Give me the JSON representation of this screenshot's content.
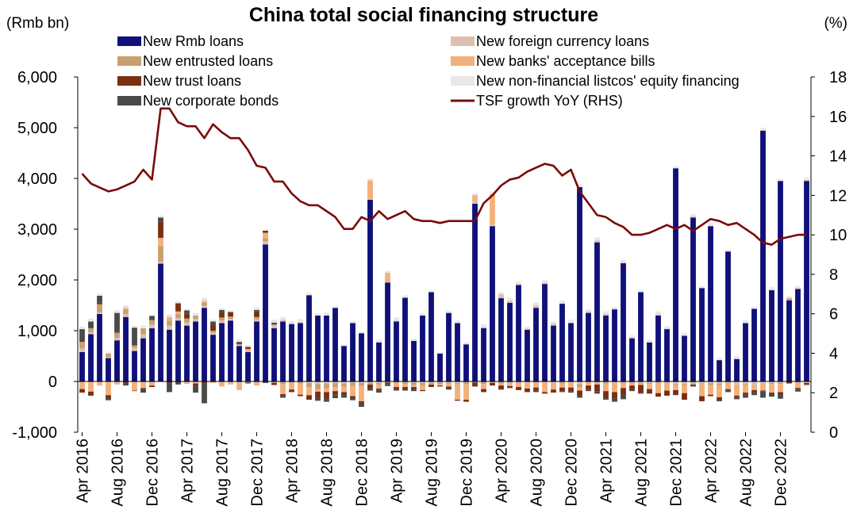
{
  "chart_data": {
    "type": "bar",
    "stacked": true,
    "title": "China total social financing structure",
    "y_unit_left": "(Rmb bn)",
    "y_unit_right": "(%)",
    "ylim_left": [
      -1000,
      6000
    ],
    "ylim_right": [
      0,
      18
    ],
    "yticks_left": [
      {
        "value": 6000,
        "label": "6,000",
        "color": "#000000"
      },
      {
        "value": 5000,
        "label": "5,000",
        "color": "#000000"
      },
      {
        "value": 4000,
        "label": "4,000",
        "color": "#000000"
      },
      {
        "value": 3000,
        "label": "3,000",
        "color": "#000000"
      },
      {
        "value": 2000,
        "label": "2,000",
        "color": "#000000"
      },
      {
        "value": 1000,
        "label": "1,000",
        "color": "#000000"
      },
      {
        "value": 0,
        "label": "0",
        "color": "#cc0000"
      },
      {
        "value": -1000,
        "label": "-1,000",
        "color": "#cc0000"
      }
    ],
    "yticks_right": [
      {
        "value": 18,
        "label": "18"
      },
      {
        "value": 16,
        "label": "16"
      },
      {
        "value": 14,
        "label": "14"
      },
      {
        "value": 12,
        "label": "12"
      },
      {
        "value": 10,
        "label": "10"
      },
      {
        "value": 8,
        "label": "8"
      },
      {
        "value": 6,
        "label": "6"
      },
      {
        "value": 4,
        "label": "4"
      },
      {
        "value": 2,
        "label": "2"
      },
      {
        "value": 0,
        "label": "0"
      }
    ],
    "categories": [
      "Apr 2016",
      "May 2016",
      "Jun 2016",
      "Jul 2016",
      "Aug 2016",
      "Sep 2016",
      "Oct 2016",
      "Nov 2016",
      "Dec 2016",
      "Jan 2017",
      "Feb 2017",
      "Mar 2017",
      "Apr 2017",
      "May 2017",
      "Jun 2017",
      "Jul 2017",
      "Aug 2017",
      "Sep 2017",
      "Oct 2017",
      "Nov 2017",
      "Dec 2017",
      "Jan 2018",
      "Feb 2018",
      "Mar 2018",
      "Apr 2018",
      "May 2018",
      "Jun 2018",
      "Jul 2018",
      "Aug 2018",
      "Sep 2018",
      "Oct 2018",
      "Nov 2018",
      "Dec 2018",
      "Jan 2019",
      "Feb 2019",
      "Mar 2019",
      "Apr 2019",
      "May 2019",
      "Jun 2019",
      "Jul 2019",
      "Aug 2019",
      "Sep 2019",
      "Oct 2019",
      "Nov 2019",
      "Dec 2019",
      "Jan 2020",
      "Feb 2020",
      "Mar 2020",
      "Apr 2020",
      "May 2020",
      "Jun 2020",
      "Jul 2020",
      "Aug 2020",
      "Sep 2020",
      "Oct 2020",
      "Nov 2020",
      "Dec 2020",
      "Jan 2021",
      "Feb 2021",
      "Mar 2021",
      "Apr 2021",
      "May 2021",
      "Jun 2021",
      "Jul 2021",
      "Aug 2021",
      "Sep 2021",
      "Oct 2021",
      "Nov 2021",
      "Dec 2021",
      "Jan 2022",
      "Feb 2022",
      "Mar 2022",
      "Apr 2022",
      "May 2022",
      "Jun 2022",
      "Jul 2022",
      "Aug 2022",
      "Sep 2022",
      "Oct 2022",
      "Nov 2022",
      "Dec 2022",
      "Jan 2023",
      "Feb 2023",
      "Mar 2023"
    ],
    "x_tick_labels": [
      "Apr 2016",
      "Aug 2016",
      "Dec 2016",
      "Apr 2017",
      "Aug 2017",
      "Dec 2017",
      "Apr 2018",
      "Aug 2018",
      "Dec 2018",
      "Apr 2019",
      "Aug 2019",
      "Dec 2019",
      "Apr 2020",
      "Aug 2020",
      "Dec 2020",
      "Apr 2021",
      "Aug 2021",
      "Dec 2021",
      "Apr 2022",
      "Aug 2022",
      "Dec 2022"
    ],
    "series": [
      {
        "name": "New Rmb loans",
        "color": "#10107a",
        "kind": "bar",
        "values": [
          580,
          930,
          1330,
          460,
          810,
          1270,
          600,
          850,
          1050,
          2320,
          1020,
          1200,
          1100,
          1180,
          1450,
          920,
          1150,
          1200,
          700,
          580,
          1180,
          2700,
          1050,
          1180,
          1130,
          1150,
          1700,
          1300,
          1300,
          1450,
          700,
          1150,
          950,
          3580,
          770,
          1950,
          1180,
          1650,
          800,
          1300,
          1760,
          550,
          1350,
          1150,
          730,
          3500,
          1050,
          3060,
          1640,
          1550,
          1900,
          1020,
          1450,
          1920,
          1100,
          1530,
          1150,
          3830,
          1350,
          2740,
          1300,
          1420,
          2330,
          850,
          1760,
          770,
          1300,
          1030,
          4200,
          900,
          3230,
          1840,
          3060,
          420,
          2560,
          440,
          1150,
          1430,
          4940,
          1800,
          3950,
          1600,
          1820,
          3950
        ]
      },
      {
        "name": "New foreign currency loans",
        "color": "#dcc0ac",
        "kind": "bar",
        "values": [
          70,
          40,
          30,
          20,
          50,
          60,
          60,
          80,
          70,
          40,
          80,
          50,
          60,
          50,
          40,
          40,
          50,
          30,
          30,
          20,
          40,
          60,
          50,
          40,
          20,
          20,
          -30,
          -50,
          -40,
          -30,
          -40,
          -20,
          -30,
          -20,
          -30,
          10,
          20,
          -10,
          -20,
          -30,
          -20,
          -10,
          -20,
          -30,
          10,
          50,
          20,
          30,
          80,
          40,
          20,
          20,
          50,
          30,
          40,
          10,
          10,
          -50,
          30,
          40,
          30,
          10,
          10,
          10,
          -20,
          -30,
          20,
          10,
          -50,
          -50,
          20,
          -40,
          -30,
          -40,
          -10,
          -60,
          -50,
          -80,
          -30,
          -30,
          -20,
          10,
          20,
          20
        ]
      },
      {
        "name": "New entrusted loans",
        "color": "#c8a070",
        "kind": "bar",
        "values": [
          130,
          80,
          160,
          70,
          100,
          90,
          50,
          120,
          90,
          310,
          100,
          80,
          80,
          70,
          60,
          40,
          60,
          50,
          -20,
          -20,
          50,
          60,
          -30,
          -50,
          -30,
          -40,
          -80,
          -100,
          -100,
          -80,
          -60,
          -70,
          -60,
          -40,
          -30,
          -20,
          -30,
          -40,
          -50,
          -60,
          -30,
          -40,
          -20,
          -30,
          -60,
          -20,
          -50,
          -30,
          -40,
          -30,
          -30,
          -20,
          -30,
          -10,
          -10,
          -40,
          -20,
          -60,
          -20,
          -30,
          -40,
          -20,
          -30,
          -30,
          -20,
          -20,
          -30,
          -30,
          -20,
          -20,
          -30,
          -20,
          -40,
          -30,
          -20,
          10,
          -20,
          -10,
          10,
          -20,
          -30,
          20,
          -30,
          -10
        ]
      },
      {
        "name": "New banks' acceptance bills",
        "color": "#f4b07a",
        "kind": "bar",
        "values": [
          -150,
          -200,
          -80,
          -270,
          -60,
          30,
          -180,
          -130,
          -80,
          160,
          70,
          50,
          -50,
          -40,
          40,
          -30,
          -100,
          -60,
          -150,
          40,
          -80,
          110,
          20,
          -200,
          -130,
          -220,
          -160,
          -50,
          -70,
          -80,
          -110,
          -200,
          -300,
          380,
          -80,
          180,
          -80,
          -60,
          -40,
          -80,
          -10,
          -30,
          -60,
          -300,
          -300,
          120,
          -100,
          600,
          -40,
          -60,
          -80,
          -120,
          -90,
          -200,
          -150,
          -80,
          -100,
          -70,
          -60,
          -30,
          -150,
          -190,
          -100,
          -50,
          -30,
          -100,
          -200,
          -150,
          -100,
          -160,
          -30,
          -230,
          -190,
          -240,
          -120,
          -220,
          -150,
          -80,
          -150,
          -170,
          -160,
          20,
          -100,
          -20
        ]
      },
      {
        "name": "New trust loans",
        "color": "#7a2f10",
        "kind": "bar",
        "values": [
          -70,
          -80,
          30,
          -50,
          10,
          -30,
          -10,
          -10,
          -30,
          320,
          -40,
          160,
          100,
          -40,
          -40,
          110,
          100,
          80,
          30,
          40,
          110,
          40,
          -40,
          -30,
          -50,
          -30,
          -90,
          -120,
          -110,
          -70,
          -40,
          -40,
          -30,
          -80,
          -20,
          -30,
          -40,
          -30,
          -30,
          -20,
          -50,
          -20,
          -40,
          -20,
          -40,
          -80,
          -60,
          -50,
          -80,
          -40,
          -60,
          -70,
          -50,
          -30,
          -60,
          -80,
          -70,
          -100,
          -80,
          -130,
          -140,
          -110,
          -120,
          -90,
          -140,
          -90,
          -70,
          -100,
          -80,
          -130,
          -10,
          -100,
          -30,
          -50,
          -20,
          -30,
          -40,
          -40,
          -20,
          -30,
          -40,
          -40,
          -30,
          -30
        ]
      },
      {
        "name": "New corporate bonds",
        "color": "#4a4a4a",
        "kind": "bar",
        "values": [
          250,
          130,
          140,
          -50,
          380,
          -50,
          350,
          -80,
          80,
          80,
          -170,
          -60,
          60,
          -140,
          -390,
          70,
          50,
          10,
          20,
          -20,
          30,
          -30,
          40,
          -40,
          0,
          0,
          0,
          -60,
          -80,
          -70,
          -70,
          -40,
          -80,
          -40,
          -60,
          -40,
          -30,
          -40,
          -50,
          0,
          0,
          0,
          -20,
          0,
          0,
          0,
          0,
          0,
          0,
          0,
          0,
          0,
          -40,
          0,
          0,
          -10,
          -30,
          -40,
          -30,
          -50,
          -30,
          -80,
          -100,
          -20,
          -30,
          0,
          0,
          0,
          -20,
          0,
          -30,
          0,
          0,
          -30,
          -40,
          -40,
          -60,
          -60,
          -120,
          -50,
          -90,
          0,
          -40,
          -10
        ]
      },
      {
        "name": "New non-financial listcos' equity financing",
        "color": "#e8e8e8",
        "kind": "bar",
        "values": [
          50,
          60,
          40,
          40,
          60,
          50,
          40,
          60,
          30,
          40,
          50,
          40,
          30,
          50,
          60,
          40,
          30,
          30,
          50,
          40,
          50,
          30,
          60,
          50,
          40,
          60,
          50,
          40,
          60,
          40,
          30,
          40,
          30,
          40,
          60,
          40,
          60,
          50,
          40,
          50,
          40,
          30,
          40,
          50,
          30,
          40,
          60,
          50,
          40,
          60,
          50,
          40,
          60,
          50,
          40,
          50,
          60,
          50,
          40,
          60,
          50,
          40,
          60,
          50,
          40,
          50,
          60,
          50,
          40,
          60,
          50,
          40,
          60,
          50,
          40,
          50,
          60,
          40,
          50,
          60,
          40,
          30,
          40,
          50
        ]
      },
      {
        "name": "TSF growth YoY (RHS)",
        "color": "#7a0a0a",
        "kind": "line",
        "values": [
          13.1,
          12.6,
          12.4,
          12.2,
          12.3,
          12.5,
          12.7,
          13.3,
          12.8,
          16.4,
          16.4,
          15.7,
          15.5,
          15.5,
          14.9,
          15.6,
          15.2,
          14.9,
          14.9,
          14.3,
          13.5,
          13.4,
          12.7,
          12.7,
          12.1,
          11.7,
          11.5,
          11.5,
          11.2,
          10.9,
          10.3,
          10.3,
          10.9,
          10.7,
          11.2,
          10.8,
          11.0,
          11.2,
          10.8,
          10.7,
          10.7,
          10.6,
          10.7,
          10.7,
          10.7,
          10.7,
          11.6,
          12.0,
          12.5,
          12.8,
          12.9,
          13.2,
          13.4,
          13.6,
          13.5,
          13.0,
          13.3,
          12.2,
          11.6,
          11.0,
          10.9,
          10.6,
          10.4,
          10.0,
          10.0,
          10.1,
          10.3,
          10.5,
          10.3,
          10.5,
          10.2,
          10.5,
          10.8,
          10.7,
          10.5,
          10.6,
          10.3,
          10.0,
          9.6,
          9.5,
          9.8,
          9.9,
          10.0,
          10.0
        ]
      }
    ],
    "legend": {
      "position": "top",
      "columns": 2
    }
  }
}
